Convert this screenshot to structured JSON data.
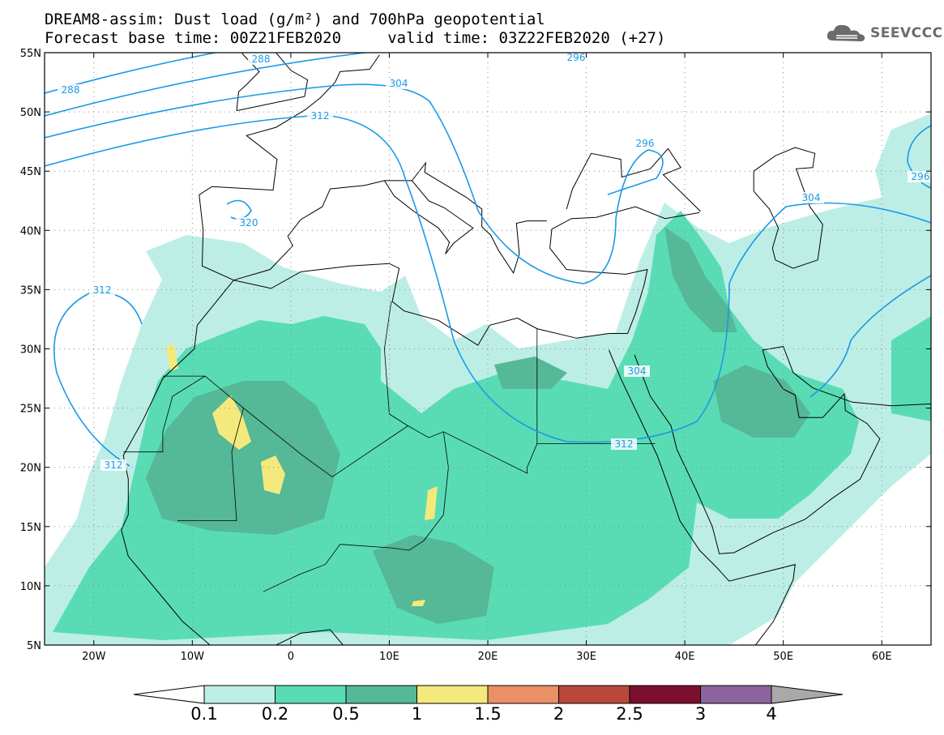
{
  "title_line1": "DREAM8-assim: Dust load (g/m²) and 700hPa geopotential",
  "title_line2": "Forecast base time: 00Z21FEB2020     valid time: 03Z22FEB2020 (+27)",
  "logo_text": "SEEVCCC",
  "map": {
    "lon_range": [
      -25,
      65
    ],
    "lat_range": [
      5,
      55
    ],
    "lat_ticks": [
      "55N",
      "50N",
      "45N",
      "40N",
      "35N",
      "30N",
      "25N",
      "20N",
      "15N",
      "10N",
      "5N"
    ],
    "lon_ticks": [
      "20W",
      "10W",
      "0",
      "10E",
      "20E",
      "30E",
      "40E",
      "50E",
      "60E"
    ],
    "grid": "dotted",
    "contour_color": "#1a9ae6",
    "contour_labels": [
      "288",
      "288",
      "296",
      "304",
      "312",
      "320",
      "296",
      "304",
      "296",
      "312",
      "304",
      "312",
      "312"
    ]
  },
  "colorbar": {
    "labels": [
      "0.1",
      "0.2",
      "0.5",
      "1",
      "1.5",
      "2",
      "2.5",
      "3",
      "4"
    ],
    "colors": [
      "#bdeee6",
      "#59dcb4",
      "#55b896",
      "#f4e97c",
      "#eb8f65",
      "#b8483c",
      "#7c0f30",
      "#8c639d",
      "#a9a9a9"
    ],
    "under_color": "#ffffff"
  }
}
